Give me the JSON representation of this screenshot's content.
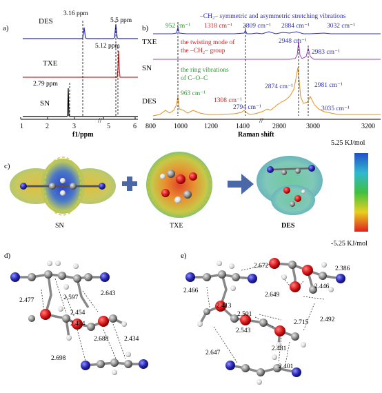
{
  "panels": {
    "a": {
      "label": "a)",
      "rows": [
        "DES",
        "TXE",
        "SN"
      ],
      "peaks": [
        "3.16 ppm",
        "5.5 ppm",
        "5.12 ppm",
        "2.79 ppm"
      ],
      "xlabel": "f1/ppm",
      "ticks": [
        "1",
        "2",
        "3",
        "5",
        "6"
      ],
      "colors": {
        "DES": "#2b2bb8",
        "TXE": "#e02020",
        "SN": "#000000"
      }
    },
    "b": {
      "label": "b)",
      "title": "–CH₂– symmetric and asymmetric stretching vibrations",
      "rows": [
        "TXE",
        "SN",
        "DES"
      ],
      "xlabel": "Raman shift",
      "ticks": [
        "800",
        "1000",
        "1200",
        "1400",
        "2800",
        "3000",
        "3200"
      ],
      "twisting_note": [
        "the twisting mode of",
        "the –CH₂– group"
      ],
      "ring_note": [
        "the ring vibrations",
        "of C–O–C"
      ],
      "peak_labels": {
        "p952": "952 cm⁻¹",
        "p1318": "1318 cm⁻¹",
        "p2809": "2809 cm⁻¹",
        "p2884": "2884 cm⁻¹",
        "p3032": "3032 cm⁻¹",
        "p2948": "2948 cm⁻¹",
        "p2983": "2983 cm⁻¹",
        "p963": "963 cm⁻¹",
        "p1308": "1308 cm⁻¹",
        "p2874": "2874 cm⁻¹",
        "p2981": "2981 cm⁻¹",
        "p2794": "2794 cm⁻¹",
        "p3035": "3035 cm⁻¹"
      },
      "colors": {
        "TXE": "#3030c0",
        "SN": "#a040c0",
        "DES": "#e09020",
        "green": "#2a9a2a",
        "red": "#d02020",
        "blue": "#3030c0"
      }
    },
    "c": {
      "label": "c)",
      "molecules": [
        "SN",
        "TXE",
        "DES"
      ],
      "scale_top": "5.25 KJ/mol",
      "scale_bottom": "-5.25 KJ/mol"
    },
    "d": {
      "label": "d)",
      "distances": [
        "2.643",
        "2.477",
        "2.597",
        "2.454",
        "2.434",
        "2.688",
        "2.434",
        "2.698"
      ]
    },
    "e": {
      "label": "e)",
      "distances": [
        "2.672",
        "2.386",
        "2.466",
        "2.649",
        "2.446",
        "2.413",
        "2.501",
        "2.543",
        "2.715",
        "2.492",
        "2.481",
        "2.647",
        "2.401"
      ]
    }
  }
}
